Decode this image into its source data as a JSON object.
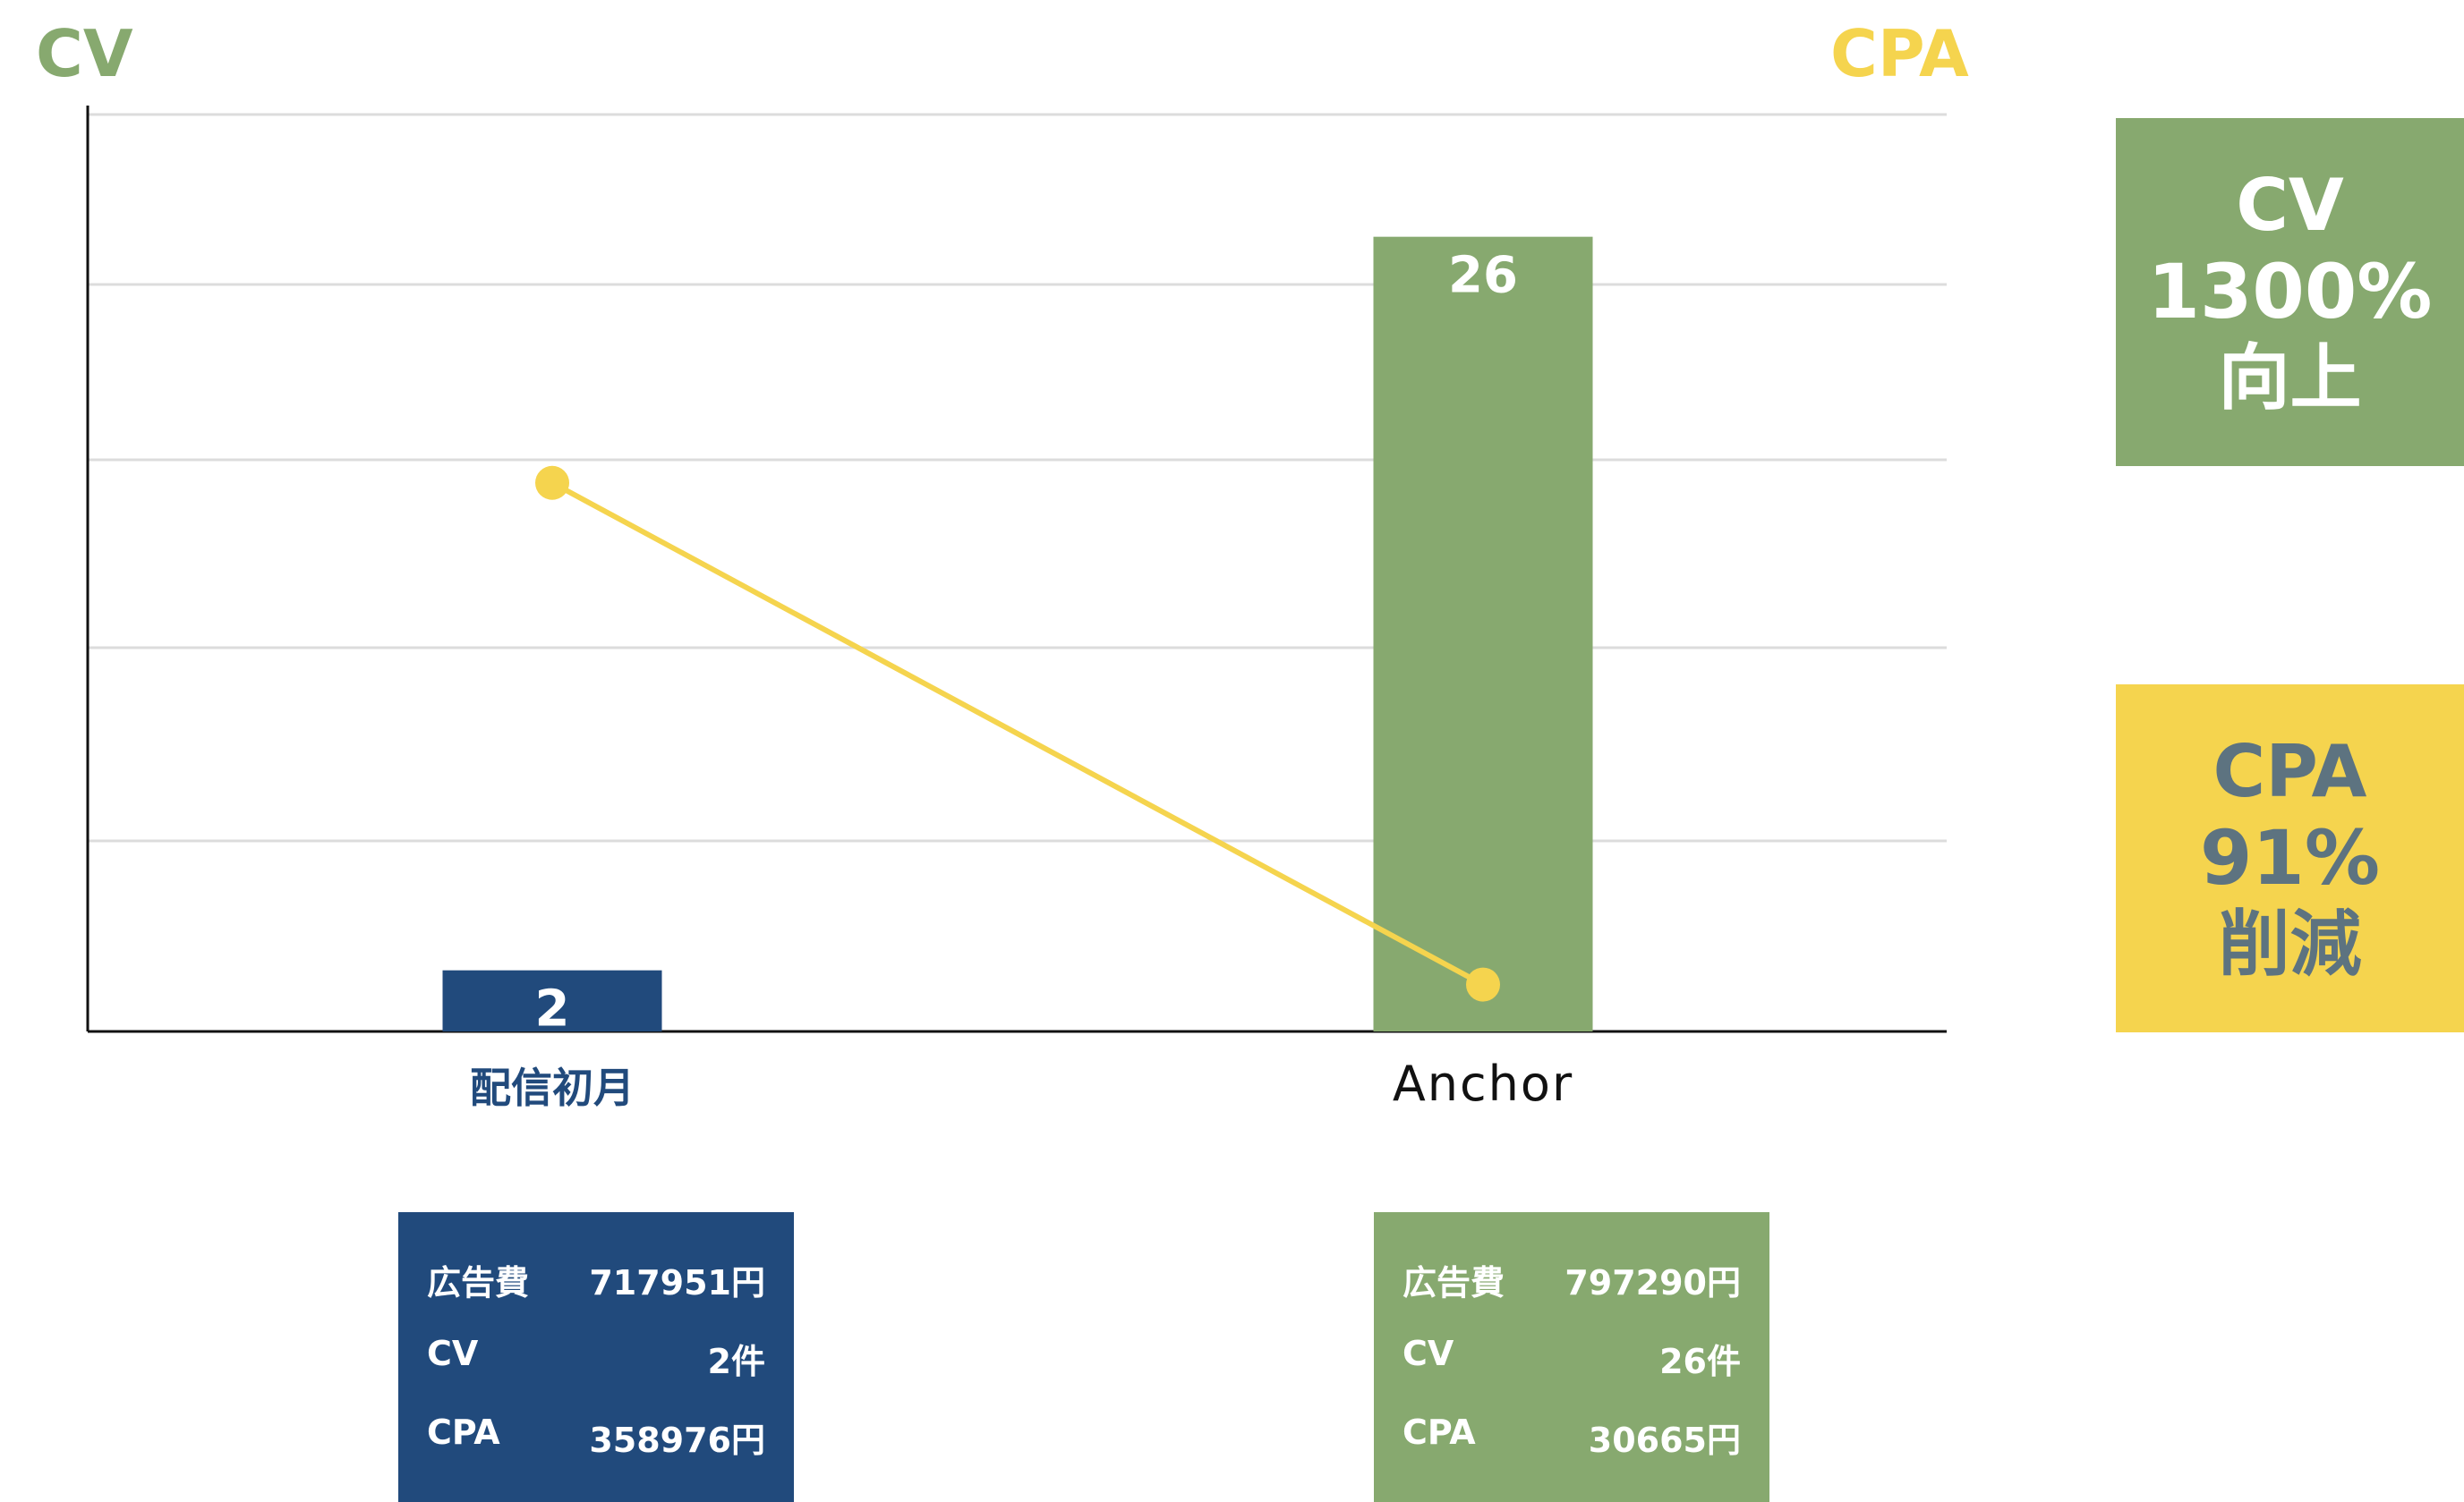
{
  "chart_data": {
    "type": "bar",
    "categories": [
      "配信初月",
      "Anchor"
    ],
    "y_axis_title": "CV",
    "y2_axis_title": "CPA",
    "series": [
      {
        "name": "CV",
        "type": "bar",
        "axis": "left",
        "values": [
          2,
          26
        ],
        "data_labels": [
          "2",
          "26"
        ],
        "colors": [
          "#214a7c",
          "#87a96f"
        ]
      },
      {
        "name": "CPA",
        "type": "line",
        "axis": "right",
        "values": [
          358976,
          30665
        ],
        "color": "#f5d44e"
      }
    ],
    "grid": true
  },
  "info_boxes": [
    {
      "rows": [
        {
          "label": "広告費",
          "value": "717951円"
        },
        {
          "label": "CV",
          "value": "2件"
        },
        {
          "label": "CPA",
          "value": "358976円"
        }
      ]
    },
    {
      "rows": [
        {
          "label": "広告費",
          "value": "797290円"
        },
        {
          "label": "CV",
          "value": "26件"
        },
        {
          "label": "CPA",
          "value": "30665円"
        }
      ]
    }
  ],
  "summary": {
    "cv": {
      "line1": "CV",
      "line2": "1300%",
      "line3": "向上"
    },
    "cpa": {
      "line1": "CPA",
      "line2": "91%",
      "line3": "削減"
    }
  },
  "colors": {
    "green": "#87a96f",
    "navy": "#214a7c",
    "yellow": "#f5d44e",
    "slate": "#5d7380"
  }
}
